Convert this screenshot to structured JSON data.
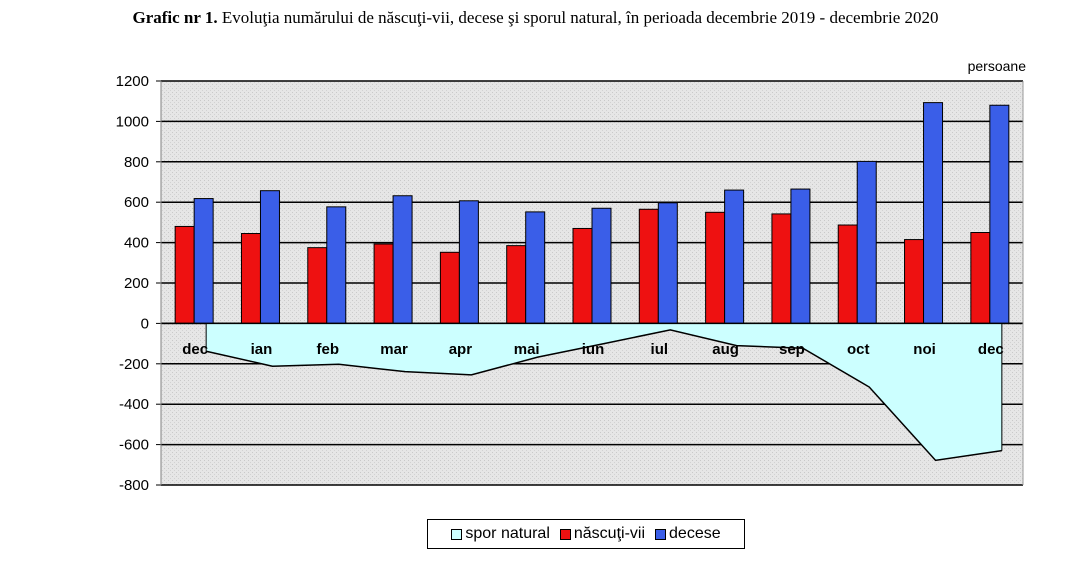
{
  "title": {
    "bold": "Grafic nr 1.",
    "text": "Evoluţia numărului de născuţi-vii, decese şi sporul natural, în perioada decembrie 2019 - decembrie 2020"
  },
  "colors": {
    "nascuti": "#ee1111",
    "decese": "#3a5ee8",
    "spor_fill": "#ccffff",
    "spor_line": "#000000",
    "plot_bg": "#e4e4e4"
  },
  "chart_data": {
    "type": "bar",
    "unit_label": "persoane",
    "categories": [
      "dec",
      "ian",
      "feb",
      "mar",
      "apr",
      "mai",
      "iun",
      "iul",
      "aug",
      "sep",
      "oct",
      "noi",
      "dec"
    ],
    "series": [
      {
        "name": "născuţi-vii",
        "type": "bar",
        "values": [
          480,
          445,
          375,
          393,
          352,
          385,
          470,
          565,
          550,
          542,
          487,
          415,
          450
        ]
      },
      {
        "name": "decese",
        "type": "bar",
        "values": [
          618,
          657,
          577,
          632,
          607,
          552,
          570,
          597,
          660,
          665,
          802,
          1093,
          1080
        ]
      },
      {
        "name": "spor natural",
        "type": "area",
        "values": [
          -138,
          -212,
          -202,
          -239,
          -255,
          -167,
          -100,
          -32,
          -110,
          -123,
          -315,
          -678,
          -630
        ]
      }
    ],
    "yticks": [
      1200,
      1000,
      800,
      600,
      400,
      200,
      0,
      -200,
      -400,
      -600,
      -800
    ],
    "ylim": [
      -800,
      1200
    ],
    "grid": true,
    "legend_position": "bottom"
  }
}
